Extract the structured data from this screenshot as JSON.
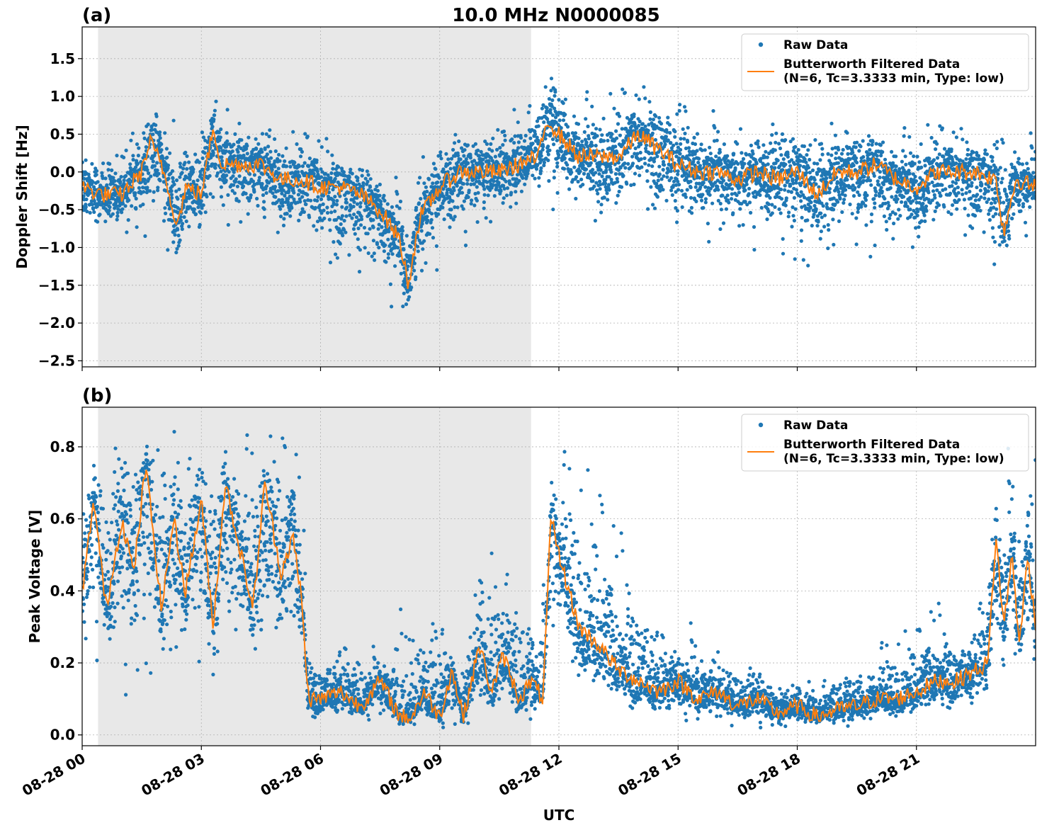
{
  "figure": {
    "title": "10.0 MHz N0000085",
    "xlabel": "UTC"
  },
  "chart_data": [
    {
      "type": "scatter",
      "panel_label": "(a)",
      "title": "10.0 MHz N0000085",
      "xlabel": "",
      "ylabel": "Doppler Shift [Hz]",
      "xlim_hours": [
        0,
        24
      ],
      "ylim": [
        -2.58,
        1.92
      ],
      "yticks": [
        -2.5,
        -2.0,
        -1.5,
        -1.0,
        -0.5,
        0.0,
        0.5,
        1.0,
        1.5
      ],
      "ytick_labels": [
        "−2.5",
        "−2.0",
        "−1.5",
        "−1.0",
        "−0.5",
        "0.0",
        "0.5",
        "1.0",
        "1.5"
      ],
      "xtick_labels": [
        "08-28 00",
        "08-28 03",
        "08-28 06",
        "08-28 09",
        "08-28 12",
        "08-28 15",
        "08-28 18",
        "08-28 21"
      ],
      "grid": true,
      "legend_position": "top-right",
      "shaded_span_hours": [
        0.4,
        11.3
      ],
      "series": [
        {
          "name": "Raw Data",
          "style": "points",
          "color": "#1f77b4",
          "x_hours": [
            0,
            0.5,
            1,
            1.5,
            2,
            2.4,
            2.6,
            3,
            3.3,
            3.5,
            4,
            4.5,
            5,
            5.5,
            6,
            6.5,
            7,
            7.5,
            8,
            8.2,
            8.5,
            9,
            9.5,
            10,
            10.5,
            11,
            11.5,
            11.7,
            12,
            12.5,
            13,
            13.5,
            14,
            14.5,
            15,
            15.5,
            16,
            16.5,
            17,
            17.5,
            18,
            18.5,
            19,
            19.5,
            20,
            20.5,
            21,
            21.5,
            22,
            22.5,
            23,
            23.5,
            24
          ],
          "y_envelope_low": [
            -0.8,
            -0.9,
            -0.8,
            -0.9,
            -1.1,
            -1.5,
            -1.1,
            -1.0,
            -0.6,
            -0.7,
            -0.9,
            -0.8,
            -1.0,
            -1.0,
            -1.4,
            -1.5,
            -1.6,
            -1.8,
            -2.0,
            -2.2,
            -1.7,
            -1.3,
            -1.1,
            -0.7,
            -0.7,
            -0.6,
            -0.3,
            -0.6,
            -0.5,
            -0.6,
            -0.9,
            -0.8,
            -0.7,
            -0.8,
            -1.0,
            -1.0,
            -1.1,
            -1.0,
            -1.1,
            -1.0,
            -1.3,
            -1.3,
            -1.2,
            -1.1,
            -1.2,
            -1.2,
            -1.2,
            -1.0,
            -1.1,
            -1.0,
            -1.6,
            -1.0,
            -0.9
          ],
          "y_envelope_high": [
            0.4,
            0.3,
            0.6,
            0.8,
            1.1,
            0.8,
            0.6,
            0.9,
            1.2,
            0.9,
            0.8,
            0.6,
            0.6,
            0.6,
            0.5,
            0.4,
            0.2,
            0.1,
            -0.1,
            -0.3,
            0.3,
            0.7,
            0.6,
            0.6,
            0.7,
            0.9,
            1.2,
            1.7,
            1.5,
            1.2,
            1.0,
            1.2,
            1.1,
            1.3,
            1.1,
            0.9,
            0.8,
            0.7,
            0.8,
            0.8,
            0.7,
            0.6,
            0.7,
            0.8,
            0.7,
            0.6,
            0.7,
            0.7,
            0.6,
            0.6,
            0.6,
            0.6,
            0.5
          ]
        },
        {
          "name": "Butterworth Filtered Data\n(N=6, Tc=3.3333 min, Type: low)",
          "style": "line",
          "color": "#ff7f0e",
          "x_hours": [
            0,
            0.5,
            1,
            1.5,
            1.7,
            2,
            2.4,
            2.6,
            3,
            3.3,
            3.5,
            4,
            4.5,
            5,
            5.5,
            6,
            6.5,
            7,
            7.5,
            8,
            8.2,
            8.5,
            9,
            9.5,
            10,
            10.5,
            11,
            11.5,
            11.7,
            12,
            12.5,
            13,
            13.5,
            14,
            14.5,
            15,
            15.5,
            16,
            16.5,
            17,
            17.5,
            18,
            18.5,
            19,
            19.5,
            20,
            20.5,
            21,
            21.5,
            22,
            22.5,
            23,
            23.2,
            23.5,
            24
          ],
          "y": [
            -0.2,
            -0.3,
            -0.3,
            0.0,
            0.4,
            0.1,
            -0.7,
            -0.2,
            -0.3,
            0.6,
            0.1,
            0.1,
            0.1,
            -0.1,
            -0.1,
            -0.2,
            -0.2,
            -0.3,
            -0.5,
            -0.9,
            -1.5,
            -0.6,
            -0.2,
            0.0,
            0.0,
            0.0,
            0.1,
            0.2,
            0.7,
            0.5,
            0.2,
            0.2,
            0.2,
            0.5,
            0.3,
            0.1,
            0.0,
            0.0,
            -0.1,
            0.0,
            -0.1,
            0.0,
            -0.3,
            0.0,
            0.0,
            0.1,
            -0.1,
            -0.2,
            0.0,
            0.0,
            0.0,
            -0.1,
            -0.8,
            -0.1,
            -0.2
          ]
        }
      ]
    },
    {
      "type": "scatter",
      "panel_label": "(b)",
      "title": "",
      "xlabel": "UTC",
      "ylabel": "Peak Voltage [V]",
      "xlim_hours": [
        0,
        24
      ],
      "ylim": [
        -0.03,
        0.91
      ],
      "yticks": [
        0.0,
        0.2,
        0.4,
        0.6,
        0.8
      ],
      "ytick_labels": [
        "0.0",
        "0.2",
        "0.4",
        "0.6",
        "0.8"
      ],
      "xtick_labels": [
        "08-28 00",
        "08-28 03",
        "08-28 06",
        "08-28 09",
        "08-28 12",
        "08-28 15",
        "08-28 18",
        "08-28 21"
      ],
      "grid": true,
      "legend_position": "top-right",
      "shaded_span_hours": [
        0.4,
        11.3
      ],
      "series": [
        {
          "name": "Raw Data",
          "style": "points",
          "color": "#1f77b4",
          "x_hours": [
            0,
            0.5,
            1,
            1.5,
            2,
            2.5,
            3,
            3.5,
            4,
            4.5,
            5,
            5.5,
            5.7,
            6,
            6.5,
            7,
            7.5,
            8,
            8.5,
            9,
            9.5,
            10,
            10.5,
            11,
            11.5,
            11.7,
            12,
            12.5,
            13,
            13.5,
            14,
            14.5,
            15,
            15.5,
            16,
            16.5,
            17,
            17.5,
            18,
            18.5,
            19,
            19.5,
            20,
            20.5,
            21,
            21.5,
            22,
            22.5,
            23,
            23.2,
            23.5,
            24
          ],
          "y_envelope_low": [
            0.15,
            0.2,
            0.1,
            0.15,
            0.15,
            0.15,
            0.15,
            0.15,
            0.2,
            0.15,
            0.15,
            0.15,
            0.03,
            0.03,
            0.03,
            0.03,
            0.02,
            0.02,
            0.02,
            0.02,
            0.02,
            0.03,
            0.03,
            0.03,
            0.04,
            0.2,
            0.2,
            0.1,
            0.07,
            0.05,
            0.04,
            0.03,
            0.02,
            0.02,
            0.02,
            0.02,
            0.02,
            0.02,
            0.02,
            0.02,
            0.02,
            0.02,
            0.03,
            0.03,
            0.03,
            0.04,
            0.05,
            0.05,
            0.1,
            0.15,
            0.15,
            0.15
          ],
          "y_envelope_high": [
            0.86,
            0.86,
            0.87,
            0.86,
            0.86,
            0.85,
            0.86,
            0.86,
            0.85,
            0.86,
            0.86,
            0.8,
            0.25,
            0.25,
            0.25,
            0.3,
            0.22,
            0.38,
            0.35,
            0.37,
            0.15,
            0.5,
            0.52,
            0.48,
            0.3,
            0.84,
            0.8,
            0.82,
            0.7,
            0.58,
            0.5,
            0.3,
            0.3,
            0.32,
            0.25,
            0.22,
            0.2,
            0.15,
            0.15,
            0.15,
            0.2,
            0.22,
            0.25,
            0.3,
            0.3,
            0.38,
            0.3,
            0.3,
            0.75,
            0.8,
            0.8,
            0.82
          ]
        },
        {
          "name": "Butterworth Filtered Data\n(N=6, Tc=3.3333 min, Type: low)",
          "style": "line",
          "color": "#ff7f0e",
          "x_hours": [
            0,
            0.3,
            0.6,
            1,
            1.3,
            1.6,
            2,
            2.3,
            2.6,
            3,
            3.3,
            3.6,
            4,
            4.3,
            4.6,
            5,
            5.3,
            5.5,
            5.7,
            6,
            6.5,
            7,
            7.5,
            8,
            8.3,
            8.6,
            9,
            9.3,
            9.6,
            10,
            10.3,
            10.6,
            11,
            11.3,
            11.6,
            11.8,
            12,
            12.5,
            13,
            13.5,
            14,
            14.5,
            15,
            15.5,
            16,
            16.5,
            17,
            17.5,
            18,
            18.5,
            19,
            19.5,
            20,
            20.5,
            21,
            21.5,
            22,
            22.5,
            22.8,
            23,
            23.2,
            23.4,
            23.6,
            23.8,
            24
          ],
          "y": [
            0.4,
            0.65,
            0.35,
            0.6,
            0.45,
            0.75,
            0.35,
            0.6,
            0.4,
            0.65,
            0.3,
            0.7,
            0.5,
            0.35,
            0.7,
            0.45,
            0.55,
            0.4,
            0.1,
            0.1,
            0.12,
            0.08,
            0.15,
            0.05,
            0.05,
            0.12,
            0.05,
            0.18,
            0.05,
            0.25,
            0.12,
            0.22,
            0.1,
            0.15,
            0.1,
            0.6,
            0.5,
            0.3,
            0.25,
            0.18,
            0.15,
            0.12,
            0.15,
            0.1,
            0.12,
            0.08,
            0.1,
            0.06,
            0.08,
            0.05,
            0.07,
            0.08,
            0.1,
            0.1,
            0.12,
            0.15,
            0.15,
            0.18,
            0.2,
            0.55,
            0.3,
            0.5,
            0.25,
            0.5,
            0.3
          ]
        }
      ]
    }
  ]
}
